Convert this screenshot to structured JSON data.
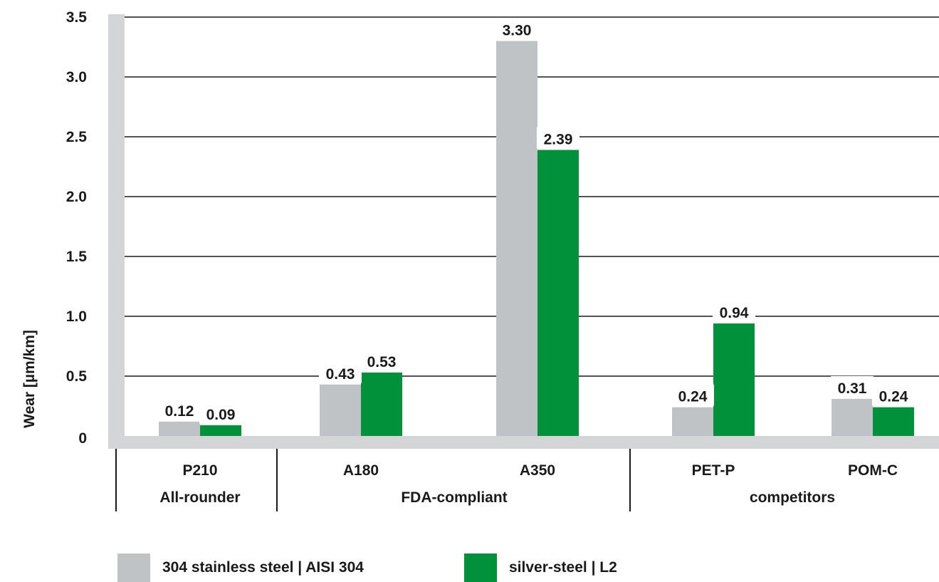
{
  "chart_data": {
    "type": "bar",
    "ylabel": "Wear [µm/km]",
    "ylim": [
      0,
      3.5
    ],
    "yticks": [
      "0",
      "0.5",
      "1.0",
      "1.5",
      "2.0",
      "2.5",
      "3.0",
      "3.5"
    ],
    "categories": [
      "P210",
      "A180",
      "A350",
      "PET-P",
      "POM-C"
    ],
    "groups": [
      "All-rounder",
      "FDA-compliant",
      "competitors"
    ],
    "series": [
      {
        "name": "304 stainless steel | AISI 304",
        "color": "#bfc3c6",
        "values": [
          0.12,
          0.43,
          3.3,
          0.24,
          0.31
        ],
        "labels": [
          "0.12",
          "0.43",
          "3.30",
          "0.24",
          "0.31"
        ]
      },
      {
        "name": "silver-steel | L2",
        "color": "#00913a",
        "values": [
          0.09,
          0.53,
          2.39,
          0.94,
          0.24
        ],
        "labels": [
          "0.09",
          "0.53",
          "2.39",
          "0.94",
          "0.24"
        ]
      }
    ],
    "grid": true,
    "legend": "bottom"
  }
}
